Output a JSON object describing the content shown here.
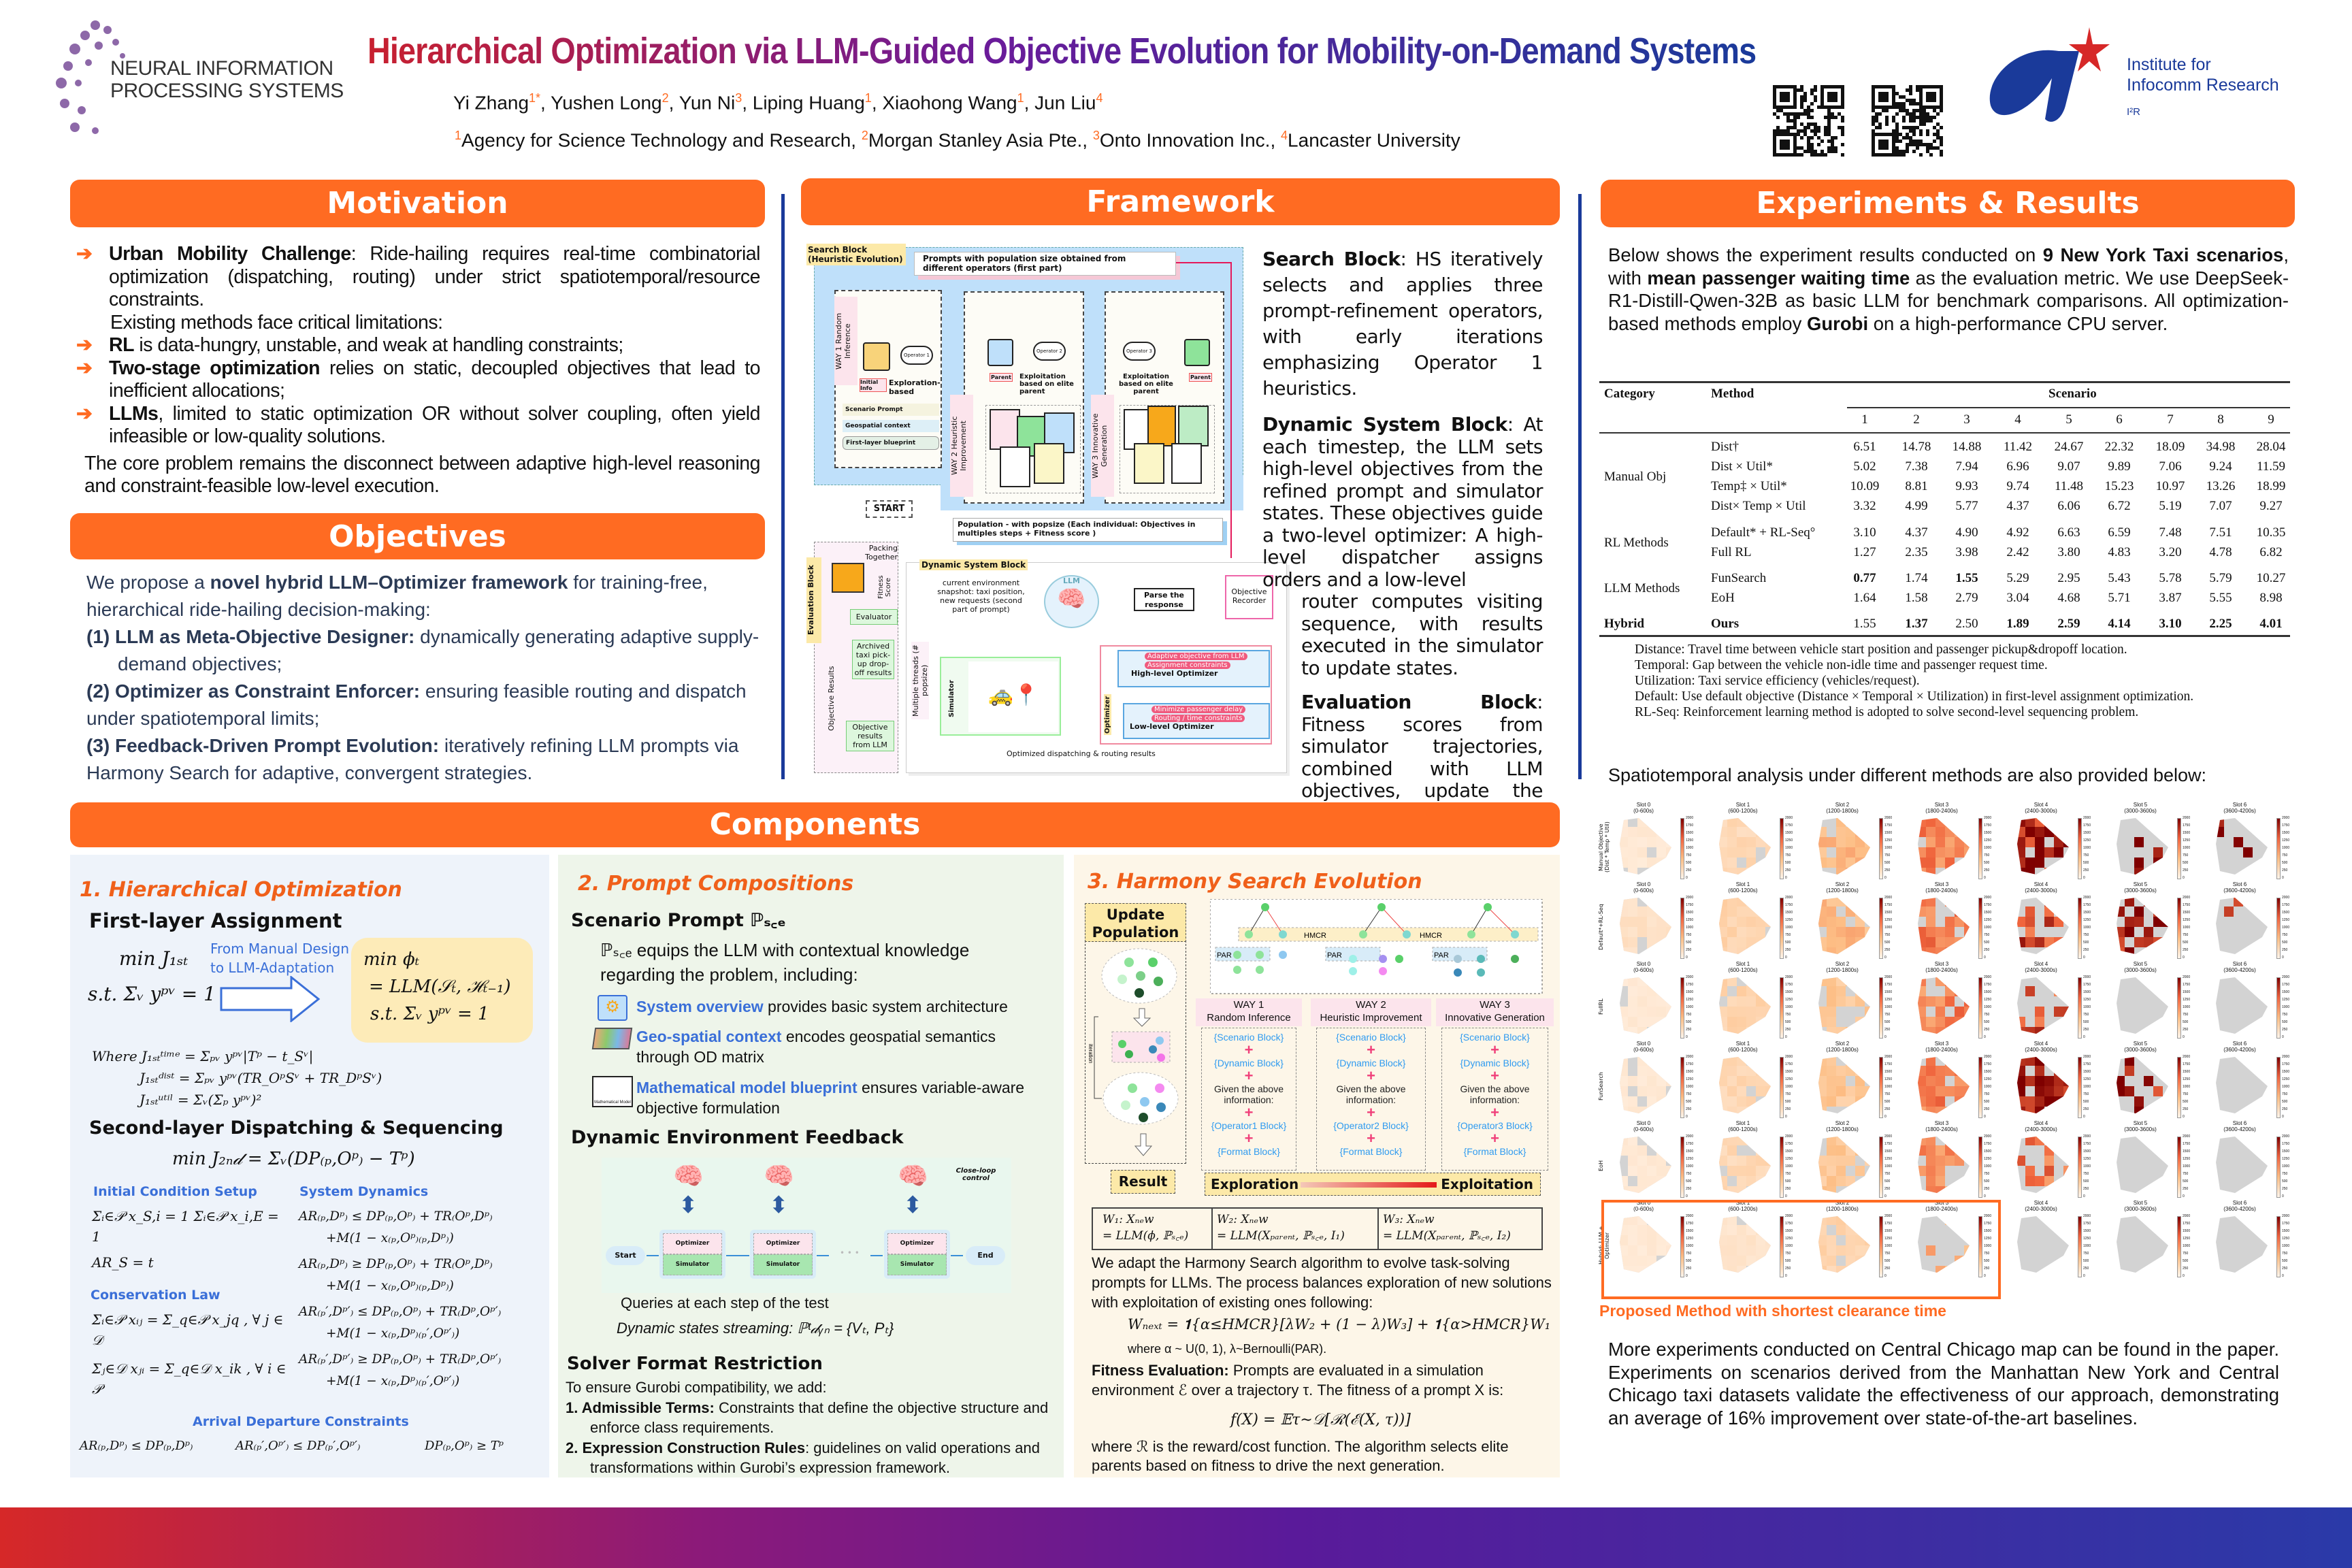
{
  "header": {
    "logo_text": [
      "NEURAL INFORMATION",
      "PROCESSING SYSTEMS"
    ],
    "title": "Hierarchical Optimization via LLM-Guided Objective Evolution for Mobility-on-Demand Systems",
    "authors": [
      [
        "Yi Zhang",
        "1*"
      ],
      [
        "Yushen Long",
        "2"
      ],
      [
        "Yun Ni",
        "3"
      ],
      [
        "Liping Huang",
        "1"
      ],
      [
        "Xiaohong Wang",
        "1"
      ],
      [
        "Jun Liu",
        "4"
      ]
    ],
    "affiliations": [
      [
        "1",
        "Agency for Science Technology and Research, "
      ],
      [
        "2",
        "Morgan Stanley Asia Pte., "
      ],
      [
        "3",
        "Onto Innovation Inc., "
      ],
      [
        "4",
        "Lancaster University"
      ]
    ],
    "institute": [
      "Institute for",
      "Infocomm Research",
      "I²R"
    ],
    "title_colors": [
      "#C8202F",
      "#6A1B9A",
      "#1A3A9A"
    ]
  },
  "colors": {
    "accent": "#FF6B22",
    "heat_low": "#FFF5EB",
    "heat_high": "#7F0000",
    "cleared": "#D3D3D3"
  },
  "motivation": {
    "title": "Motivation",
    "bullets": [
      [
        [
          "b",
          "Urban Mobility Challenge"
        ],
        [
          "n",
          ": Ride-hailing requires real-time combinatorial optimization (dispatching, routing) under strict spatiotemporal/resource constraints."
        ]
      ],
      [
        [
          "b",
          "RL"
        ],
        [
          "n",
          " is data-hungry, unstable, and weak at handling constraints;"
        ]
      ],
      [
        [
          "b",
          "Two-stage optimization"
        ],
        [
          "n",
          " relies on static, decoupled objectives that lead to inefficient allocations;"
        ]
      ],
      [
        [
          "b",
          "LLMs"
        ],
        [
          "n",
          ", limited to static optimization OR without solver coupling, often yield infeasible or low-quality solutions."
        ]
      ]
    ],
    "limitations": "Existing methods face critical limitations:",
    "core": "The core problem remains the disconnect between adaptive high-level reasoning and constraint-feasible low-level execution."
  },
  "objectives": {
    "title": "Objectives",
    "intro": [
      [
        "n",
        "We propose a "
      ],
      [
        "b",
        "novel hybrid LLM–Optimizer framework"
      ],
      [
        "n",
        " for training-free, hierarchical ride-hailing decision-making:"
      ]
    ],
    "items": [
      [
        [
          "b",
          "(1)  LLM as Meta-Objective Designer:"
        ],
        [
          "n",
          " dynamically generating adaptive supply-demand objectives;"
        ]
      ],
      [
        [
          "b",
          "(2) Optimizer as Constraint Enforcer:"
        ],
        [
          "n",
          " ensuring feasible routing and dispatch under spatiotemporal limits;"
        ]
      ],
      [
        [
          "b",
          "(3) Feedback-Driven Prompt Evolution:"
        ],
        [
          "n",
          " iteratively refining LLM prompts via Harmony Search for adaptive, convergent strategies."
        ]
      ]
    ]
  },
  "framework": {
    "title": "Framework",
    "diagram": {
      "search_label": "Search Block (Heuristic Evolution)",
      "prompts_box": "Prompts with population size obtained from different operators  (first part)",
      "way1": "WAY 1  Random Inference",
      "way2": "WAY 2  Heuristic Improvement",
      "way3": "WAY 3  Innovative Generation",
      "op1": "Operator 1",
      "op2": "Operator 2",
      "op3": "Operator 3",
      "initial_info": "Initial Info",
      "parent": "Parent",
      "exploration": "Exploration-based",
      "exploitation": "Exploitation based on elite parent",
      "way1_items": [
        "Scenario Prompt",
        "Geospatial context",
        "First-layer blueprint"
      ],
      "start": "START",
      "population": "Population - with popsize (Each individual: Objectives in multiples steps + Fitness score )",
      "eval_label": "Evaluation Block",
      "packing": "Packing Together",
      "fitness_score": "Fitness Score",
      "evaluator": "Evaluator",
      "archived": "Archived taxi pick-up drop-off results",
      "objective_results": "Objective Results",
      "obj_from_llm": "Objective results from LLM",
      "dyn_label": "Dynamic System Block",
      "snapshot": "current environment snapshot: taxi position, new requests (second part of prompt)",
      "llm": "LLM",
      "parse": "Parse the response",
      "recorder": "Objective Recorder",
      "simulator": "Simulator",
      "threads": "Multiple threads (# popsize)",
      "optimizer": "Optimizer",
      "hl_tags": [
        "Adaptive objective from LLM",
        "Assignment constraints"
      ],
      "hl": "High-level Optimizer",
      "ll_tags": [
        "Minimize passenger delay",
        "Routing / time constraints"
      ],
      "ll": "Low-level Optimizer",
      "results": "Optimized dispatching & routing results"
    },
    "search_text": [
      [
        "b",
        "Search Block"
      ],
      [
        "n",
        ": HS iteratively selects and applies three prompt-refinement operators, with early iterations emphasizing Operator 1 heuristics."
      ]
    ],
    "dynamic_text_a": [
      [
        "b",
        "Dynamic System Block"
      ],
      [
        "n",
        ": At each timestep, the LLM sets high-level objectives from the refined prompt and simulator states. These objectives guide a two-level optimizer: A high-level dispatcher assigns orders and a low-level"
      ]
    ],
    "dynamic_text_b": "router computes visiting sequence, with results executed in the simulator to update states.",
    "eval_text": [
      [
        "b",
        "Evaluation Block"
      ],
      [
        "n",
        ": Fitness scores from simulator trajectories, combined with LLM objectives, update the population."
      ]
    ]
  },
  "experiments": {
    "title": "Experiments & Results",
    "intro": [
      [
        "n",
        "Below shows the experiment results conducted on "
      ],
      [
        "b",
        "9 New York Taxi scenarios"
      ],
      [
        "n",
        ", with "
      ],
      [
        "b",
        "mean passenger waiting time"
      ],
      [
        "n",
        " as the evaluation metric. We use DeepSeek-R1-Distill-Qwen-32B as basic LLM for benchmark comparisons. All optimization-based methods employ "
      ],
      [
        "b",
        "Gurobi"
      ],
      [
        "n",
        " on a high-performance CPU server."
      ]
    ],
    "table": {
      "headers": {
        "category": "Category",
        "method": "Method",
        "scenario": "Scenario"
      },
      "scenarios": [
        "1",
        "2",
        "3",
        "4",
        "5",
        "6",
        "7",
        "8",
        "9"
      ],
      "groups": [
        {
          "category": "Manual Obj",
          "rows": [
            {
              "method": "Dist†",
              "values": [
                "6.51",
                "14.78",
                "14.88",
                "11.42",
                "24.67",
                "22.32",
                "18.09",
                "34.98",
                "28.04"
              ],
              "bold": []
            },
            {
              "method": "Dist × Util*",
              "values": [
                "5.02",
                "7.38",
                "7.94",
                "6.96",
                "9.07",
                "9.89",
                "7.06",
                "9.24",
                "11.59"
              ],
              "bold": []
            },
            {
              "method": "Temp‡ × Util*",
              "values": [
                "10.09",
                "8.81",
                "9.93",
                "9.74",
                "11.48",
                "15.23",
                "10.97",
                "13.26",
                "18.99"
              ],
              "bold": []
            },
            {
              "method": "Dist× Temp × Util",
              "values": [
                "3.32",
                "4.99",
                "5.77",
                "4.37",
                "6.06",
                "6.72",
                "5.19",
                "7.07",
                "9.27"
              ],
              "bold": []
            }
          ]
        },
        {
          "category": "RL Methods",
          "rows": [
            {
              "method": "Default* + RL-Seq°",
              "values": [
                "3.10",
                "4.37",
                "4.90",
                "4.92",
                "6.63",
                "6.59",
                "7.48",
                "7.51",
                "10.35"
              ],
              "bold": []
            },
            {
              "method": "Full RL",
              "values": [
                "1.27",
                "2.35",
                "3.98",
                "2.42",
                "3.80",
                "4.83",
                "3.20",
                "4.78",
                "6.82"
              ],
              "bold": []
            }
          ]
        },
        {
          "category": "LLM Methods",
          "rows": [
            {
              "method": "FunSearch",
              "values": [
                "0.77",
                "1.74",
                "1.55",
                "5.29",
                "2.95",
                "5.43",
                "5.78",
                "5.79",
                "10.27"
              ],
              "bold": [
                0,
                2
              ]
            },
            {
              "method": "EoH",
              "values": [
                "1.64",
                "1.58",
                "2.79",
                "3.04",
                "4.68",
                "5.71",
                "3.87",
                "5.55",
                "8.98"
              ],
              "bold": []
            }
          ]
        },
        {
          "category": "Hybrid",
          "rows": [
            {
              "method": "Ours",
              "values": [
                "1.55",
                "1.37",
                "2.50",
                "1.89",
                "2.59",
                "4.14",
                "3.10",
                "2.25",
                "4.01"
              ],
              "bold": [
                1,
                3,
                4,
                5,
                6,
                7,
                8
              ]
            }
          ]
        }
      ],
      "footnotes": [
        "Distance: Travel time between vehicle start position and passenger pickup&dropoff location.",
        "Temporal: Gap between the vehicle non-idle time and passenger request time.",
        "Utilization: Taxi service efficiency (vehicles/request).",
        "Default: Use default objective (Distance × Temporal × Utilization) in first-level assignment optimization.",
        "RL-Seq: Reinforcement learning method is adopted to solve second-level sequencing problem."
      ]
    },
    "spatio_caption": "Spatiotemporal analysis under different methods are also provided below:",
    "heatmap": {
      "type": "heatmap",
      "rows": [
        "Manual Objective (Dist * Temp * Util)",
        "Default*+RL-Seq",
        "FullRL",
        "FunSearch",
        "EoH",
        "Hybrid: LLM + Optimizer"
      ],
      "slots": [
        [
          "Slot 0",
          "(0-600s)"
        ],
        [
          "Slot 1",
          "(600-1200s)"
        ],
        [
          "Slot 2",
          "(1200-1800s)"
        ],
        [
          "Slot 3",
          "(1800-2400s)"
        ],
        [
          "Slot 4",
          "(2400-3000s)"
        ],
        [
          "Slot 5",
          "(3000-3600s)"
        ],
        [
          "Slot 6",
          "(3600-4200s)"
        ]
      ],
      "colorbar_ticks": [
        "2000",
        "1750",
        "1500",
        "1250",
        "1000",
        "750",
        "500",
        "250",
        "0"
      ],
      "colorbar_range": [
        0,
        2000
      ],
      "intensity": [
        [
          150,
          350,
          700,
          1100,
          1800,
          1900,
          1900
        ],
        [
          250,
          400,
          700,
          1150,
          1500,
          1900,
          1900
        ],
        [
          150,
          400,
          550,
          1100,
          1450,
          0,
          0
        ],
        [
          150,
          350,
          550,
          1150,
          1800,
          1900,
          0
        ],
        [
          150,
          350,
          550,
          1000,
          1200,
          0,
          0
        ],
        [
          150,
          200,
          400,
          800,
          0,
          0,
          0
        ]
      ],
      "coverage": [
        [
          0.9,
          0.9,
          0.8,
          0.8,
          0.8,
          0.2,
          0.2
        ],
        [
          0.9,
          0.9,
          0.8,
          0.8,
          0.5,
          0.5,
          0.05
        ],
        [
          0.9,
          0.9,
          0.7,
          0.8,
          0.4,
          0,
          0
        ],
        [
          0.9,
          0.8,
          0.7,
          0.8,
          0.7,
          0.3,
          0
        ],
        [
          0.9,
          0.8,
          0.7,
          0.7,
          0.3,
          0,
          0
        ],
        [
          0.9,
          0.9,
          0.8,
          0.3,
          0,
          0,
          0
        ]
      ],
      "highlight_caption": "Proposed Method with shortest clearance time"
    },
    "conclusion": "More experiments conducted on Central Chicago map can be found in the paper. Experiments on scenarios derived from the Manhattan New York and Central Chicago taxi datasets validate the effectiveness of our approach, demonstrating an average of 16% improvement over state-of-the-art baselines."
  },
  "components": {
    "title": "Components",
    "p1": {
      "title": "1. Hierarchical Optimization",
      "first": "First-layer Assignment",
      "min_j1": "min J₁ₛₜ",
      "st1": "s.t. Σᵥ yᵖᵛ = 1",
      "arrow_text": [
        "From Manual Design",
        "to LLM-Adaptation"
      ],
      "box": [
        "min ϕₜ",
        "= LLM(𝒮ₜ, ℋₜ₋₁)",
        "s.t. Σᵥ yᵖᵛ = 1"
      ],
      "where": [
        "Where J₁ₛₜᵗⁱᵐᵉ = Σₚᵥ yᵖᵛ|Tᵖ − t_Sᵛ|",
        "J₁ₛₜᵈⁱˢᵗ = Σₚᵥ yᵖᵛ(TR_OᵖSᵛ + TR_DᵖSᵛ)",
        "J₁ₛₜᵘᵗⁱˡ = Σᵥ(Σₚ yᵖᵛ)²"
      ],
      "second": "Second-layer Dispatching & Sequencing",
      "min_j2": "min J₂ₙ𝒹 = Σᵥ(DP₍ₚ,Oᵖ₎ − Tᵖ)",
      "init_title": "Initial Condition Setup",
      "init_eqs": [
        "Σᵢ∈𝒫 x_S,i = 1    Σᵢ∈𝒫 x_i,E = 1",
        "AR_S = t"
      ],
      "cons_title": "Conservation Law",
      "cons_eqs": [
        "Σᵢ∈𝒫 xᵢⱼ = Σ_q∈𝒫 x_jq , ∀ j ∈ 𝒟",
        "Σⱼ∈𝒟 xⱼᵢ = Σ_q∈𝒟 x_ik , ∀ i ∈ 𝒫"
      ],
      "sys_title": "System Dynamics",
      "sys_eqs": [
        "AR₍ₚ,Dᵖ₎ ≤ DP₍ₚ,Oᵖ₎ + TR₍Oᵖ,Dᵖ₎",
        "+M(1 − x₍ₚ,Oᵖ₎₍ₚ,Dᵖ₎)",
        "AR₍ₚ,Dᵖ₎ ≥ DP₍ₚ,Oᵖ₎ + TR₍Oᵖ,Dᵖ₎",
        "+M(1 − x₍ₚ,Oᵖ₎₍ₚ,Dᵖ₎)",
        "AR₍ₚ′,Dᵖ′₎ ≤ DP₍ₚ,Oᵖ₎ + TR₍Dᵖ,Oᵖ′₎",
        "+M(1 − x₍ₚ,Dᵖ₎₍ₚ′,Oᵖ′₎)",
        "AR₍ₚ′,Dᵖ′₎ ≥ DP₍ₚ,Oᵖ₎ + TR₍Dᵖ,Oᵖ′₎",
        "+M(1 − x₍ₚ,Dᵖ₎₍ₚ′,Oᵖ′₎)"
      ],
      "arr_title": "Arrival Departure Constraints",
      "arr_eqs": [
        "AR₍ₚ,Dᵖ₎ ≤ DP₍ₚ,Dᵖ₎",
        "AR₍ₚ′,Oᵖ′₎ ≤ DP₍ₚ′,Oᵖ′₎",
        "DP₍ₚ,Oᵖ₎ ≥ Tᵖ"
      ]
    },
    "p2": {
      "title": "2. Prompt Compositions",
      "scenario": "Scenario Prompt ℙₛ꜀ₑ",
      "scenario_desc": "ℙₛ꜀ₑ equips the LLM with contextual knowledge regarding the problem, including:",
      "items": [
        [
          "System overview",
          " provides basic system architecture"
        ],
        [
          "Geo-spatial context",
          " encodes geospatial semantics through OD matrix"
        ],
        [
          "Mathematical model blueprint",
          " ensures variable-aware objective formulation"
        ]
      ],
      "math_icon_label": "Mathematical Model",
      "dynamic": "Dynamic Environment Feedback",
      "flow": {
        "start": "Start",
        "end": "End",
        "optimizer": "Optimizer",
        "simulator": "Simulator",
        "closeloop": "Close-loop control"
      },
      "queries": "Queries at each step of the test",
      "streaming": "Dynamic states streaming: ℙᵗ𝒹ᵧₙ = {Vₜ, Pₜ}",
      "solver": "Solver Format Restriction",
      "solver_intro": "To ensure Gurobi compatibility, we add:",
      "solver_items": [
        [
          [
            "b",
            "1.  Admissible Terms:"
          ],
          [
            "n",
            " Constraints that define the objective structure and enforce class requirements."
          ]
        ],
        [
          [
            "b",
            "2.  Expression Construction Rules"
          ],
          [
            "n",
            ": guidelines on valid operations and transformations within Gurobi’s expression framework."
          ]
        ]
      ]
    },
    "p3": {
      "title": "3. Harmony Search Evolution",
      "update": "Update Population",
      "result": "Result",
      "iteration": "iteration",
      "hmcr": "HMCR",
      "par": "PAR",
      "ways": [
        {
          "h": [
            "WAY 1",
            "Random Inference"
          ],
          "op": "{Operator1 Block}"
        },
        {
          "h": [
            "WAY 2",
            "Heuristic Improvement"
          ],
          "op": "{Operator2 Block}"
        },
        {
          "h": [
            "WAY 3",
            "Innovative Generation"
          ],
          "op": "{Operator3 Block}"
        }
      ],
      "blocks": {
        "scenario": "{Scenario Block}",
        "dynamic": "{Dynamic Block}",
        "given": "Given the above information:",
        "format": "{Format Block}"
      },
      "exploration": "Exploration",
      "exploitation": "Exploitation",
      "w": [
        [
          "W₁: Xₙₑw",
          "= LLM(ϕ, ℙₛ꜀ₑ)"
        ],
        [
          "W₂: Xₙₑw",
          "= LLM(Xₚₐᵣₑₙₜ, ℙₛ꜀ₑ, I₁)"
        ],
        [
          "W₃: Xₙₑw",
          "= LLM(Xₚₐᵣₑₙₜ, ℙₛ꜀ₑ, I₂)"
        ]
      ],
      "para": "We adapt the Harmony Search algorithm to evolve task-solving prompts for LLMs. The process balances exploration of new solutions with exploitation of existing ones following:",
      "wnext": "Wₙₑₓₜ = 𝟏{α≤HMCR}[λW₂ + (1 − λ)W₃] + 𝟏{α>HMCR}W₁",
      "where": "where α ~ U(0, 1), λ~Bernoulli(PAR).",
      "fitness": [
        [
          "b",
          "Fitness Evaluation:"
        ],
        [
          "n",
          " Prompts are evaluated in a simulation environment ℰ over a trajectory τ. The fitness of a prompt X is:"
        ]
      ],
      "fx": "f(X) = 𝔼τ∼𝒟[ℛ(ℰ(X, τ))]",
      "where_r": "where ℛ is the reward/cost function. The algorithm selects elite parents based on fitness to drive the next generation."
    }
  }
}
